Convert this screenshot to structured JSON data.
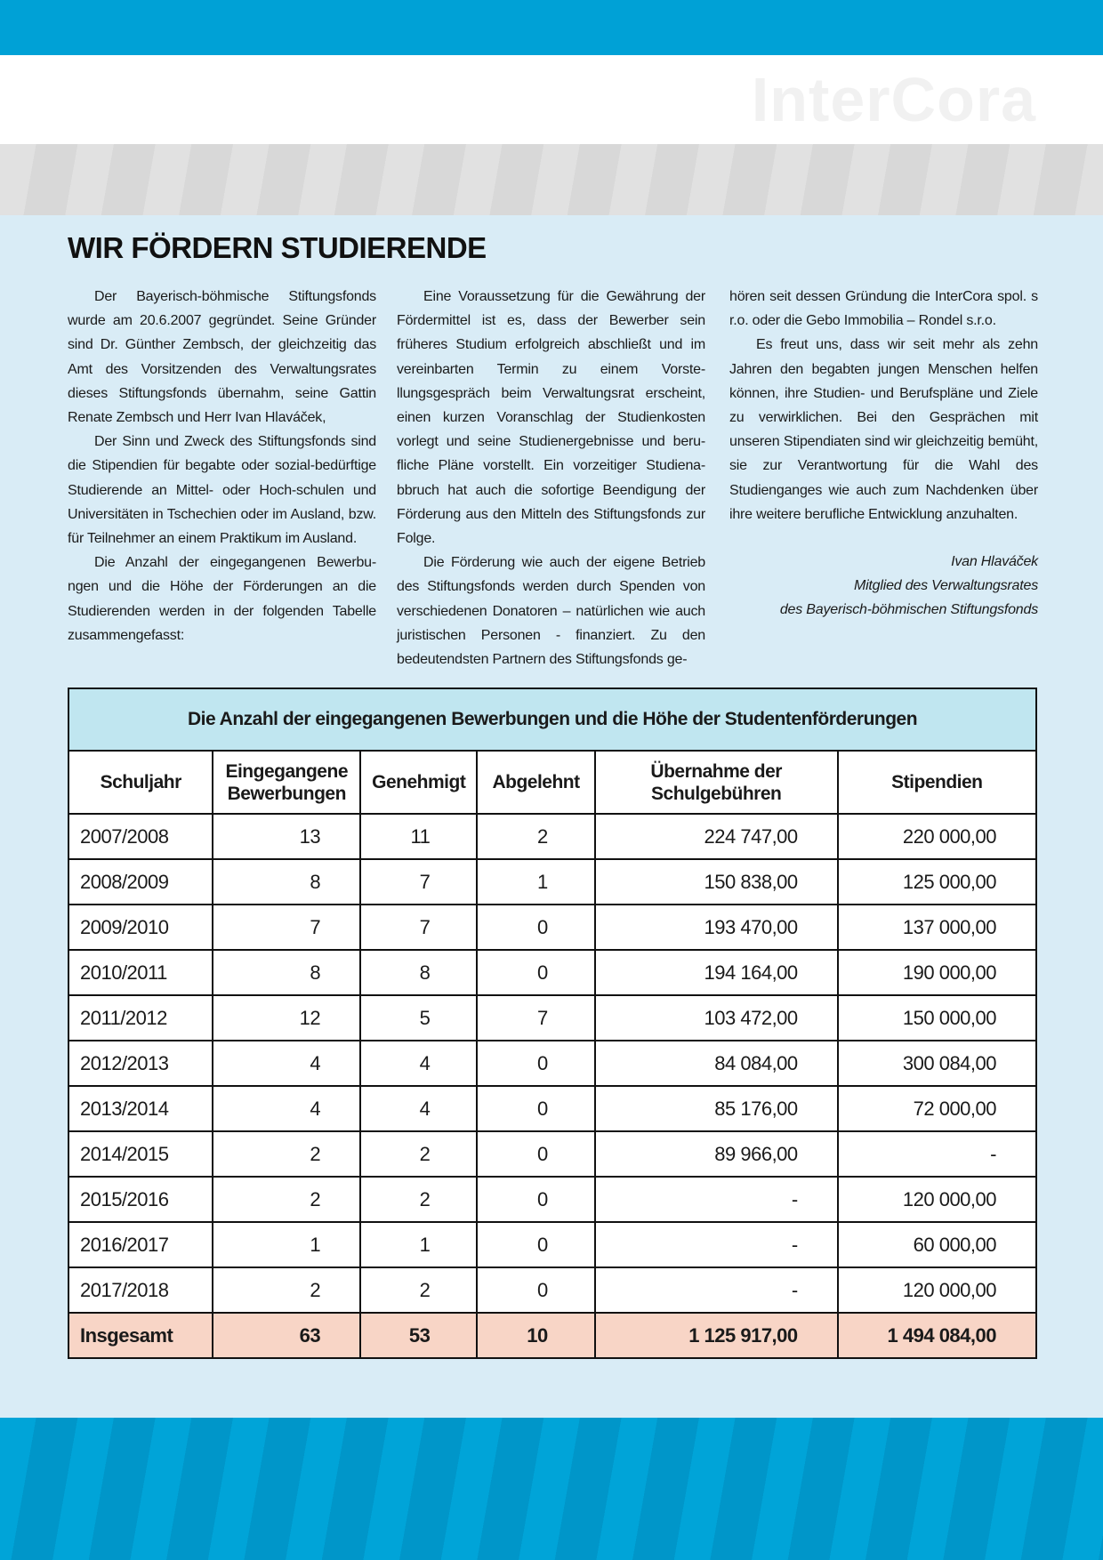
{
  "brand": {
    "logo_text": "InterCora",
    "accent": "#00a1d6",
    "table_title_bg": "#c0e6f0",
    "total_row_bg": "#f8d5c6",
    "page_bg": "#d9ecf6"
  },
  "title": "WIR FÖRDERN STUDIERENDE",
  "columns": [
    [
      "Der Bayerisch-böhmische Stiftungsfonds wurde am 20.6.2007 gegründet. Seine Gründer sind Dr. Günther Zembsch, der gleichzeitig das Amt des Vorsitzenden des Verwaltungsrates dieses Stiftungsfonds übernahm, seine Gattin Renate Zembsch und Herr Ivan Hlaváček,",
      "Der Sinn und Zweck des Stiftungsfonds sind die Stipendien für begabte oder sozial-bedürftige Studierende an Mittel- oder Hoch-schulen und Universitäten in Tschechien oder im Ausland, bzw. für Teilnehmer an einem Praktikum im Ausland.",
      "Die Anzahl der eingegangenen Bewerbu-ngen und die Höhe der Förderungen an die Studierenden werden in der folgenden Tabelle zusammengefasst:"
    ],
    [
      "Eine Voraussetzung für die Gewährung der Fördermittel ist es, dass der Bewerber sein früheres Studium erfolgreich abschließt und im vereinbarten Termin zu einem Vorste-llungsgespräch beim Verwaltungsrat erscheint, einen kurzen Voranschlag der Studienkosten vorlegt und seine Studienergebnisse und beru-fliche Pläne vorstellt. Ein vorzeitiger Studiena-bbruch hat auch die sofortige Beendigung der Förderung aus den Mitteln des Stiftungsfonds zur Folge.",
      "Die Förderung wie auch der eigene Betrieb des Stiftungsfonds werden durch Spenden von verschiedenen Donatoren – natürlichen wie auch juristischen Personen - finanziert. Zu den bedeutendsten Partnern des Stiftungsfonds ge-"
    ],
    [
      "hören seit dessen Gründung die InterCora spol. s r.o. oder die Gebo Immobilia – Rondel s.r.o.",
      "Es freut uns, dass wir seit mehr als zehn Jahren den begabten jungen Menschen helfen können, ihre Studien- und Berufspläne und Ziele zu verwirklichen. Bei den Gesprächen mit unseren Stipendiaten sind wir gleichzeitig bemüht, sie zur Verantwortung für die Wahl des Studienganges wie auch zum Nachdenken über ihre weitere berufliche Entwicklung anzuhalten."
    ]
  ],
  "signature": {
    "name": "Ivan Hlaváček",
    "role": "Mitglied des Verwaltungsrates",
    "org": "des Bayerisch-böhmischen Stiftungsfonds"
  },
  "table": {
    "title": "Die Anzahl der eingegangenen Bewerbungen und die Höhe der Studentenförderungen",
    "headers": [
      "Schuljahr",
      "Eingegangene Bewerbungen",
      "Genehmigt",
      "Abgelehnt",
      "Übernahme der Schulgebühren",
      "Stipendien"
    ],
    "rows": [
      [
        "2007/2008",
        "13",
        "11",
        "2",
        "224 747,00",
        "220 000,00"
      ],
      [
        "2008/2009",
        "8",
        "7",
        "1",
        "150 838,00",
        "125 000,00"
      ],
      [
        "2009/2010",
        "7",
        "7",
        "0",
        "193 470,00",
        "137 000,00"
      ],
      [
        "2010/2011",
        "8",
        "8",
        "0",
        "194 164,00",
        "190 000,00"
      ],
      [
        "2011/2012",
        "12",
        "5",
        "7",
        "103 472,00",
        "150 000,00"
      ],
      [
        "2012/2013",
        "4",
        "4",
        "0",
        "84 084,00",
        "300 084,00"
      ],
      [
        "2013/2014",
        "4",
        "4",
        "0",
        "85 176,00",
        "72 000,00"
      ],
      [
        "2014/2015",
        "2",
        "2",
        "0",
        "89 966,00",
        "-"
      ],
      [
        "2015/2016",
        "2",
        "2",
        "0",
        "-",
        "120 000,00"
      ],
      [
        "2016/2017",
        "1",
        "1",
        "0",
        "-",
        "60 000,00"
      ],
      [
        "2017/2018",
        "2",
        "2",
        "0",
        "-",
        "120 000,00"
      ]
    ],
    "total": [
      "Insgesamt",
      "63",
      "53",
      "10",
      "1 125 917,00",
      "1 494 084,00"
    ]
  }
}
